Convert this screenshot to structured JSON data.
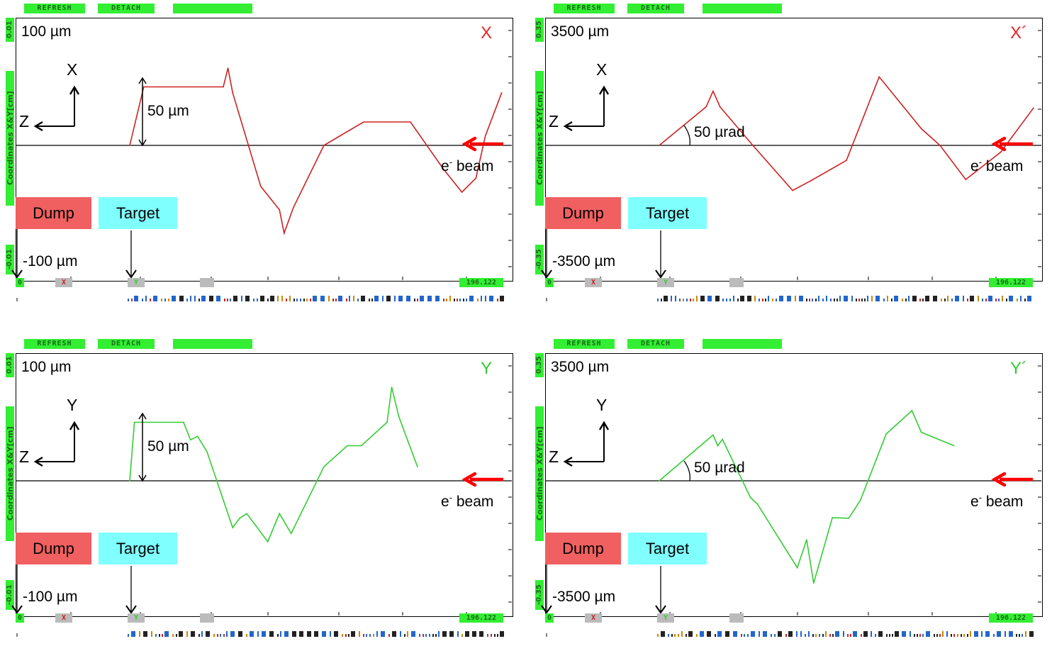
{
  "toolbar": {
    "refresh": "REFRESH",
    "detach": "DETACH"
  },
  "axis_side_label": "Coordinates X&Y[cm]",
  "bottom_tags": {
    "zero": "0",
    "x": "X",
    "y": "Y",
    "value": "196.122"
  },
  "labels": {
    "dump": "Dump",
    "target": "Target",
    "beam_e": "e",
    "beam_sup": "-",
    "beam_word": " beam",
    "z_axis": "Z"
  },
  "colors": {
    "x_trace": "#cc2222",
    "y_trace": "#33cc33",
    "beam_arrow": "#ff0000",
    "button_green": "#33ee33",
    "dump_box": "#f06060",
    "target_box": "#80ffff"
  },
  "chart_data": [
    {
      "type": "line",
      "title": "X",
      "title_color": "#ee2222",
      "axis_top_label": "0.01",
      "axis_bottom_label": "-0.01",
      "top_text": "100 µm",
      "bottom_text": "-100 µm",
      "scale_annotation": "50 µm",
      "vertical_axis_letter": "X",
      "ylim": [
        -100,
        100
      ],
      "x": [
        0,
        0.6,
        1.2,
        4.0,
        4.2,
        4.4,
        5.6,
        6.4,
        6.6,
        7.0,
        8.3,
        10.0,
        11.0,
        12.0,
        13.4,
        14.2,
        14.8,
        15.2,
        15.9
      ],
      "y": [
        0,
        50,
        50,
        50,
        66,
        45,
        -35,
        -55,
        -75,
        -53,
        0,
        20,
        20,
        20,
        -20,
        -40,
        -28,
        8,
        45
      ]
    },
    {
      "type": "line",
      "title": "X´",
      "title_color": "#ee2222",
      "axis_top_label": "0.35",
      "axis_bottom_label": "-0.35",
      "top_text": "3500 µm",
      "bottom_text": "-3500 µm",
      "scale_annotation": "50 µrad",
      "vertical_axis_letter": "X",
      "ylim": [
        -3500,
        3500
      ],
      "x": [
        0,
        2.0,
        2.3,
        2.6,
        4.0,
        5.7,
        6.5,
        8.0,
        9.4,
        11.2,
        12.0,
        13.1,
        14.6,
        16.0
      ],
      "y": [
        0,
        1150,
        1620,
        1150,
        0,
        -1350,
        -1050,
        -450,
        2050,
        500,
        0,
        -1020,
        -200,
        1120
      ]
    },
    {
      "type": "line",
      "title": "Y",
      "title_color": "#33cc33",
      "axis_top_label": "0.01",
      "axis_bottom_label": "-0.01",
      "top_text": "100 µm",
      "bottom_text": "-100 µm",
      "scale_annotation": "50 µm",
      "vertical_axis_letter": "Y",
      "ylim": [
        -100,
        100
      ],
      "x": [
        0,
        0.2,
        2.3,
        2.6,
        2.9,
        3.3,
        4.4,
        4.7,
        5.0,
        5.9,
        6.4,
        6.9,
        8.3,
        9.3,
        9.9,
        11.0,
        11.2,
        11.5,
        12.3
      ],
      "y": [
        0,
        50,
        50,
        35,
        38,
        25,
        -40,
        -32,
        -28,
        -52,
        -28,
        -45,
        12,
        30,
        30,
        50,
        80,
        55,
        12
      ]
    },
    {
      "type": "line",
      "title": "Y´",
      "title_color": "#33cc33",
      "axis_top_label": "0.35",
      "axis_bottom_label": "-0.35",
      "top_text": "3500 µm",
      "bottom_text": "-3500 µm",
      "scale_annotation": "50 µrad",
      "vertical_axis_letter": "Y",
      "ylim": [
        -3500,
        3500
      ],
      "x": [
        0,
        2.3,
        2.5,
        2.7,
        3.9,
        4.2,
        5.9,
        6.3,
        6.6,
        7.4,
        8.1,
        8.6,
        9.7,
        10.8,
        11.2,
        12.6
      ],
      "y": [
        0,
        1370,
        1050,
        1240,
        -500,
        -700,
        -2600,
        -1760,
        -3060,
        -1100,
        -1120,
        -580,
        1400,
        2100,
        1450,
        1050
      ]
    }
  ]
}
